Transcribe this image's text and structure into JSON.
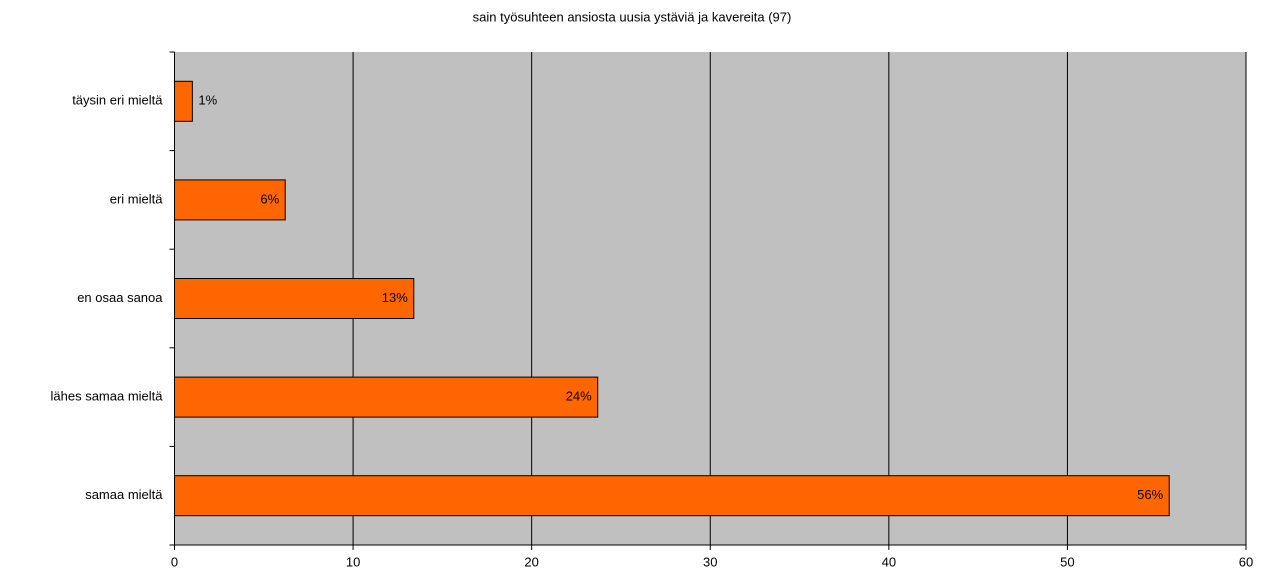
{
  "chart_data": {
    "type": "bar",
    "orientation": "horizontal",
    "title": "sain työsuhteen ansiosta uusia ystäviä ja kavereita (97)",
    "categories": [
      "täysin eri mieltä",
      "eri mieltä",
      "en osaa sanoa",
      "lähes samaa mieltä",
      "samaa mieltä"
    ],
    "values": [
      1.0,
      6.2,
      13.4,
      23.7,
      55.7
    ],
    "value_labels": [
      "1%",
      "6%",
      "13%",
      "24%",
      "56%"
    ],
    "color": "#ff6600",
    "xlim": [
      0,
      60
    ],
    "xticks": [
      0,
      10,
      20,
      30,
      40,
      50,
      60
    ],
    "grid": true
  }
}
